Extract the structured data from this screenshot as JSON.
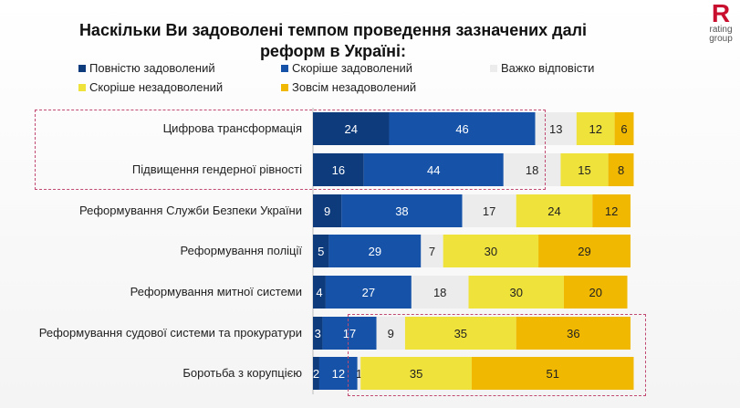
{
  "logo": {
    "letter": "R",
    "line1": "rating",
    "line2": "group"
  },
  "chart_data": {
    "type": "bar",
    "orientation": "horizontal-stacked",
    "title": "Наскільки Ви задоволені темпом проведення зазначених далі реформ в Україні:",
    "categories": [
      "Цифрова трансформація",
      "Підвищення гендерної рівності",
      "Реформування Служби Безпеки України",
      "Реформування поліції",
      "Реформування митної системи",
      "Реформування судової системи та прокуратури",
      "Боротьба з корупцією"
    ],
    "series": [
      {
        "name": "Повністю задоволений",
        "color": "#0e3b7c",
        "values": [
          24,
          16,
          9,
          5,
          4,
          3,
          2
        ]
      },
      {
        "name": "Скоріше задоволений",
        "color": "#1552a8",
        "values": [
          46,
          44,
          38,
          29,
          27,
          17,
          12
        ]
      },
      {
        "name": "Важко відповісти",
        "color": "#ececec",
        "values": [
          13,
          18,
          17,
          7,
          18,
          9,
          1
        ]
      },
      {
        "name": "Скоріше незадоволений",
        "color": "#efe23a",
        "values": [
          12,
          15,
          24,
          30,
          30,
          35,
          35
        ]
      },
      {
        "name": "Зовсім незадоволений",
        "color": "#f0b800",
        "values": [
          6,
          8,
          12,
          29,
          20,
          36,
          51
        ]
      }
    ],
    "xlim": [
      0,
      100
    ],
    "legend_placement": "top",
    "grid": false
  }
}
